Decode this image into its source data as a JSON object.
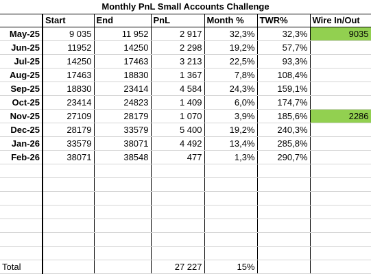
{
  "title": "Monthly PnL Small Accounts Challenge",
  "header": [
    "Start",
    "End",
    "PnL",
    "Month %",
    "TWR%",
    "Wire In/Out"
  ],
  "rows": [
    {
      "month": "May-25",
      "start": "9 035",
      "end": "11 952",
      "pnl": "2 917",
      "month_pct": "32,3%",
      "twr": "32,3%",
      "wire": "9035"
    },
    {
      "month": "Jun-25",
      "start": "11952",
      "end": "14250",
      "pnl": "2 298",
      "month_pct": "19,2%",
      "twr": "57,7%"
    },
    {
      "month": "Jul-25",
      "start": "14250",
      "end": "17463",
      "pnl": "3 213",
      "month_pct": "22,5%",
      "twr": "93,3%"
    },
    {
      "month": "Aug-25",
      "start": "17463",
      "end": "18830",
      "pnl": "1 367",
      "month_pct": "7,8%",
      "twr": "108,4%"
    },
    {
      "month": "Sep-25",
      "start": "18830",
      "end": "23414",
      "pnl": "4 584",
      "month_pct": "24,3%",
      "twr": "159,1%"
    },
    {
      "month": "Oct-25",
      "start": "23414",
      "end": "24823",
      "pnl": "1 409",
      "month_pct": "6,0%",
      "twr": "174,7%"
    },
    {
      "month": "Nov-25",
      "start": "27109",
      "end": "28179",
      "pnl": "1 070",
      "month_pct": "3,9%",
      "twr": "185,6%",
      "wire": "2286"
    },
    {
      "month": "Dec-25",
      "start": "28179",
      "end": "33579",
      "pnl": "5 400",
      "month_pct": "19,2%",
      "twr": "240,3%"
    },
    {
      "month": "Jan-26",
      "start": "33579",
      "end": "38071",
      "pnl": "4 492",
      "month_pct": "13,4%",
      "twr": "285,8%"
    },
    {
      "month": "Feb-26",
      "start": "38071",
      "end": "38548",
      "pnl": "477",
      "month_pct": "1,3%",
      "twr": "290,7%"
    }
  ],
  "total": {
    "label": "Total",
    "pnl": "27 227",
    "month_pct": "15%"
  }
}
